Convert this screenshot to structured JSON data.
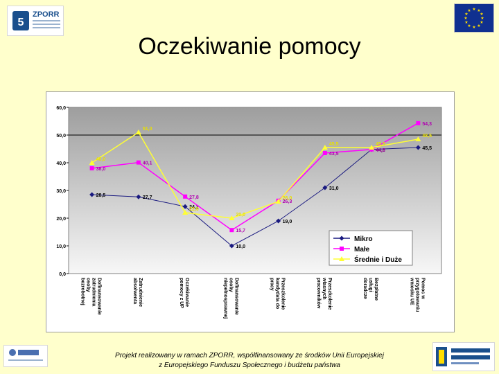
{
  "header": {
    "title": "Oczekiwanie pomocy",
    "logo_brand": "ZPORR"
  },
  "footer": {
    "line1": "Projekt realizowany w ramach ZPORR, współfinansowany ze środków Unii Europejskiej",
    "line2": "z Europejskiego Funduszu Społecznego i budżetu państwa"
  },
  "colors": {
    "background": "#ffffcc",
    "series_mikro": "#1a1a80",
    "series_male": "#ff00ff",
    "series_srednie": "#ffff33"
  },
  "chart_data": {
    "type": "line",
    "categories": [
      "Dofinansowanie zatrudnienia osoby bezrobotnej",
      "Zatrudnienie absolwenta",
      "Oczekiwanie pomocy z UP",
      "Dofinansowanie osoby niepełnosprawnej",
      "Przeszkolenie kandydata do pracy",
      "Przeszkolenie własnych pracowników",
      "Bezpłatne usługi doradcze",
      "Pomoc w przygotowaniu wniosku UE"
    ],
    "series": [
      {
        "name": "Mikro",
        "values": [
          28.5,
          27.7,
          24.2,
          10.0,
          19.0,
          31.0,
          44.8,
          45.5
        ],
        "labels": [
          "28,5",
          "27,7",
          "24,2",
          "10,0",
          "19,0",
          "31,0",
          "44,8",
          "45,5"
        ]
      },
      {
        "name": "Małe",
        "values": [
          38.0,
          40.1,
          27.8,
          15.7,
          26.3,
          43.5,
          44.8,
          54.3
        ],
        "labels": [
          "38,0",
          "40,1",
          "27,8",
          "15,7",
          "26,3",
          "43,5",
          "44,8",
          "54,3"
        ]
      },
      {
        "name": "Średnie i Duże",
        "values": [
          40.0,
          51.0,
          22.0,
          20.0,
          26.0,
          45.5,
          45.5,
          48.5
        ],
        "labels": [
          "40,0",
          "51,0",
          "22,0",
          "20,0",
          "26,0",
          "45,5",
          "45,5",
          "48,5"
        ]
      }
    ],
    "y_ticks": [
      "0,0",
      "10,0",
      "20,0",
      "30,0",
      "40,0",
      "50,0",
      "60,0"
    ],
    "ylim": [
      0,
      60
    ],
    "highlight_line_value": 50,
    "grid": false,
    "legend_position": "bottom-right"
  }
}
